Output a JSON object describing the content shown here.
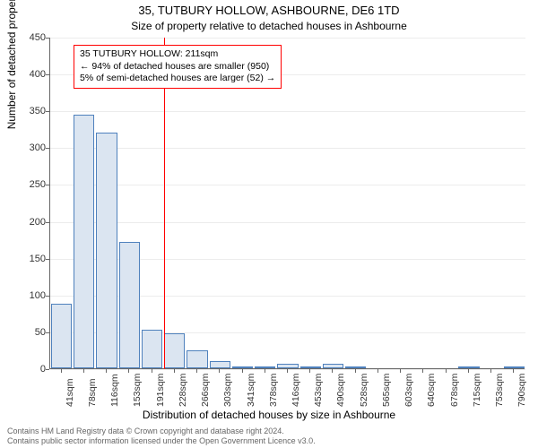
{
  "title_main": "35, TUTBURY HOLLOW, ASHBOURNE, DE6 1TD",
  "title_sub": "Size of property relative to detached houses in Ashbourne",
  "yaxis_label": "Number of detached properties",
  "xaxis_label": "Distribution of detached houses by size in Ashbourne",
  "footer_line1": "Contains HM Land Registry data © Crown copyright and database right 2024.",
  "footer_line2": "Contains public sector information licensed under the Open Government Licence v3.0.",
  "chart": {
    "type": "histogram",
    "ylim": [
      0,
      450
    ],
    "ytick_step": 50,
    "grid_color": "#d9d9d9",
    "axis_color": "#666666",
    "bar_fill": "#dbe5f1",
    "bar_stroke": "#4f81bd",
    "background_color": "#ffffff",
    "marker_color": "#ff0000",
    "annotation_border": "#ff0000",
    "annotation_bg": "#ffffff",
    "x_categories": [
      "41sqm",
      "78sqm",
      "116sqm",
      "153sqm",
      "191sqm",
      "228sqm",
      "266sqm",
      "303sqm",
      "341sqm",
      "378sqm",
      "416sqm",
      "453sqm",
      "490sqm",
      "528sqm",
      "565sqm",
      "603sqm",
      "640sqm",
      "678sqm",
      "715sqm",
      "753sqm",
      "790sqm"
    ],
    "values": [
      88,
      344,
      320,
      172,
      52,
      48,
      24,
      10,
      3,
      2,
      6,
      2,
      6,
      2,
      0,
      0,
      0,
      0,
      2,
      0,
      2
    ],
    "marker_position_sqm": 211,
    "annotation": {
      "line1": "35 TUTBURY HOLLOW: 211sqm",
      "line2": "← 94% of detached houses are smaller (950)",
      "line3": "5% of semi-detached houses are larger (52) →"
    },
    "title_fontsize": 13,
    "subtitle_fontsize": 12,
    "axis_label_fontsize": 12,
    "tick_fontsize": 11
  }
}
